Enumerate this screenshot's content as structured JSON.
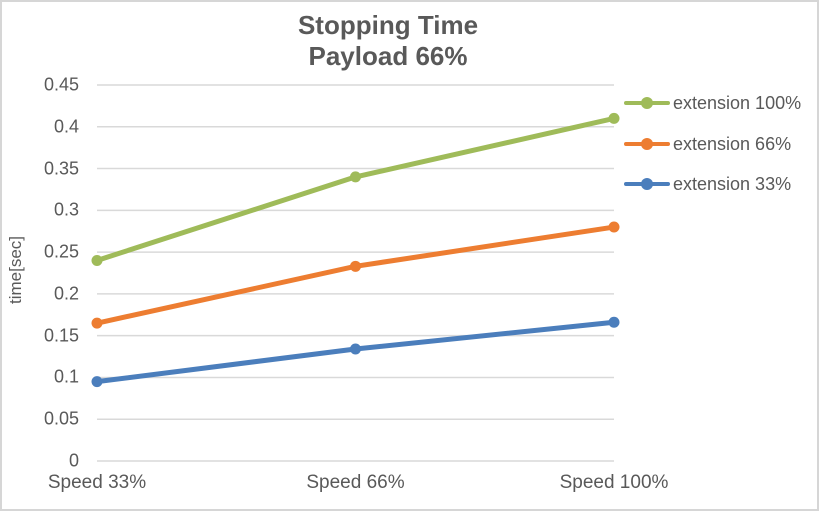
{
  "chart_data": {
    "type": "line",
    "title": "Stopping Time",
    "subtitle": "Payload 66%",
    "categories": [
      "Speed 33%",
      "Speed 66%",
      "Speed 100%"
    ],
    "series": [
      {
        "name": "extension 100%",
        "color": "#9fbb59",
        "values": [
          0.24,
          0.34,
          0.41
        ]
      },
      {
        "name": "extension 66%",
        "color": "#ed7d31",
        "values": [
          0.165,
          0.233,
          0.28
        ]
      },
      {
        "name": "extension 33%",
        "color": "#4b7ebc",
        "values": [
          0.095,
          0.134,
          0.166
        ]
      }
    ],
    "xlabel": "",
    "ylabel": "time[sec]",
    "ylim": [
      0,
      0.45
    ],
    "ytick_step": 0.05,
    "ytick_labels": [
      "0",
      "0.05",
      "0.1",
      "0.15",
      "0.2",
      "0.25",
      "0.3",
      "0.35",
      "0.4",
      "0.45"
    ],
    "grid": true,
    "legend_position": "right"
  },
  "colors": {
    "text": "#595959",
    "gridline": "#d9d9d9",
    "background": "#ffffff",
    "border": "#d6d6d6"
  }
}
